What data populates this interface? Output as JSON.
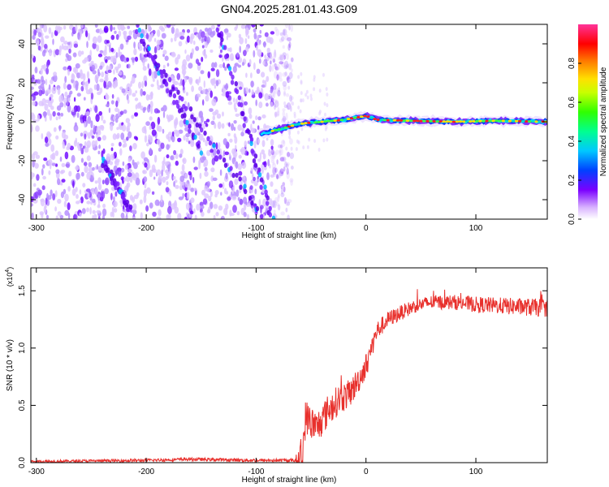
{
  "title": "GN04.2025.281.01.43.G09",
  "chart_data": [
    {
      "type": "heatmap",
      "xlabel": "Height of straight line (km)",
      "ylabel": "Frequency (Hz)",
      "xlim": [
        -305,
        165
      ],
      "ylim": [
        -50,
        50
      ],
      "x_ticks": [
        -300,
        -200,
        -100,
        0,
        100
      ],
      "y_ticks": [
        -40,
        -20,
        0,
        20,
        40
      ],
      "grid": false,
      "colorbar": {
        "label": "Normalized spectral amplitude",
        "range": [
          0,
          1
        ],
        "ticks": [
          0.0,
          0.2,
          0.4,
          0.6,
          0.8
        ]
      },
      "features": {
        "noise_region_x": [
          -305,
          -75
        ],
        "carrier_line": [
          {
            "x": -95,
            "y": -6
          },
          {
            "x": -80,
            "y": -4
          },
          {
            "x": -60,
            "y": -1
          },
          {
            "x": -40,
            "y": 0
          },
          {
            "x": -20,
            "y": 1
          },
          {
            "x": 0,
            "y": 3
          },
          {
            "x": 10,
            "y": 1
          },
          {
            "x": 40,
            "y": 0.5
          },
          {
            "x": 80,
            "y": 0
          },
          {
            "x": 120,
            "y": 0.5
          },
          {
            "x": 165,
            "y": 0
          }
        ],
        "diagonal_streaks": [
          {
            "x0": -200,
            "y0": 38,
            "x1": -95,
            "y1": -48
          },
          {
            "x0": -240,
            "y0": -20,
            "x1": -215,
            "y1": -45
          },
          {
            "x0": -135,
            "y0": 50,
            "x1": -85,
            "y1": -50
          },
          {
            "x0": -210,
            "y0": 50,
            "x1": -150,
            "y1": -15
          }
        ]
      }
    },
    {
      "type": "line",
      "xlabel": "Height of straight line (km)",
      "ylabel": "SNR (10 * v/v)",
      "y_multiplier": "(x10",
      "y_multiplier_exp": "4",
      "xlim": [
        -305,
        165
      ],
      "ylim": [
        0,
        1.7
      ],
      "x_ticks": [
        -300,
        -200,
        -100,
        0,
        100
      ],
      "y_ticks": [
        "0.0",
        "0.5",
        "1.0",
        "1.5"
      ],
      "grid": false,
      "series": [
        {
          "color": "#e8302c",
          "points": [
            {
              "x": -305,
              "y": 0.01
            },
            {
              "x": -200,
              "y": 0.02
            },
            {
              "x": -160,
              "y": 0.03
            },
            {
              "x": -100,
              "y": 0.02
            },
            {
              "x": -65,
              "y": 0.02
            },
            {
              "x": -58,
              "y": 0.05
            },
            {
              "x": -55,
              "y": 0.4
            },
            {
              "x": -45,
              "y": 0.3
            },
            {
              "x": -35,
              "y": 0.45
            },
            {
              "x": -25,
              "y": 0.55
            },
            {
              "x": -15,
              "y": 0.6
            },
            {
              "x": -5,
              "y": 0.75
            },
            {
              "x": 0,
              "y": 0.85
            },
            {
              "x": 10,
              "y": 1.15
            },
            {
              "x": 20,
              "y": 1.25
            },
            {
              "x": 30,
              "y": 1.3
            },
            {
              "x": 45,
              "y": 1.37
            },
            {
              "x": 60,
              "y": 1.4
            },
            {
              "x": 80,
              "y": 1.4
            },
            {
              "x": 100,
              "y": 1.38
            },
            {
              "x": 120,
              "y": 1.37
            },
            {
              "x": 140,
              "y": 1.36
            },
            {
              "x": 165,
              "y": 1.35
            }
          ],
          "noise_amplitude": [
            {
              "x": -305,
              "a": 0.012
            },
            {
              "x": -65,
              "a": 0.015
            },
            {
              "x": -58,
              "a": 0.16
            },
            {
              "x": -10,
              "a": 0.12
            },
            {
              "x": 20,
              "a": 0.07
            },
            {
              "x": 50,
              "a": 0.06
            },
            {
              "x": 165,
              "a": 0.08
            }
          ]
        }
      ]
    }
  ]
}
